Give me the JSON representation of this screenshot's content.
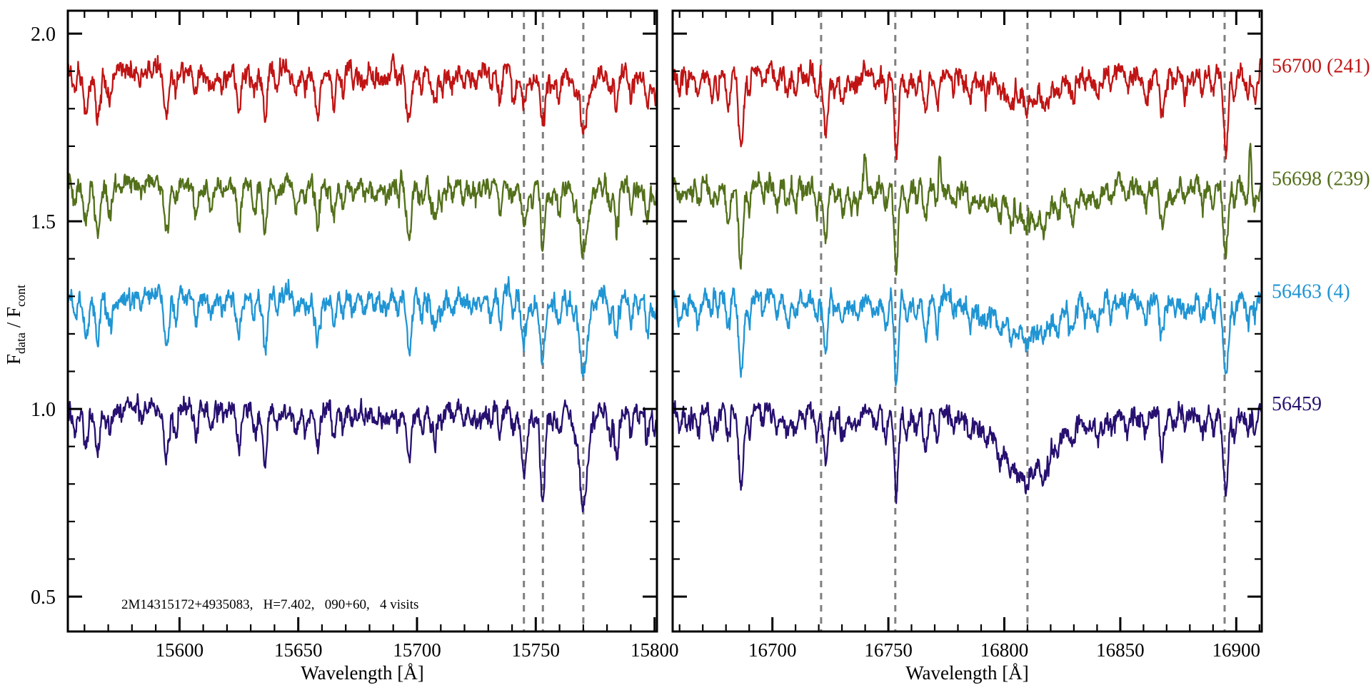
{
  "figure": {
    "background": "#ffffff",
    "annotation": "2M14315172+4935083,   H=7.402,   090+60,   4 visits",
    "ylabel": {
      "f1": "F",
      "sub1": "data",
      "mid": " / F",
      "sub2": "cont"
    }
  },
  "chart_data": {
    "type": "line",
    "title": "",
    "xlabel": "Wavelength [Å]",
    "ylabel": "F_data / F_cont",
    "ylim": [
      0.407,
      2.061
    ],
    "yticks_major": [
      0.5,
      1.0,
      1.5,
      2.0
    ],
    "ytick_labels": [
      "0.5",
      "1.0",
      "1.5",
      "2.0"
    ],
    "ytick_minor_step": 0.1,
    "grid": false,
    "legend_position": "right-outside",
    "marker_color": "#7f7f7f",
    "axis_color": "#000000",
    "panels": [
      {
        "xlim": [
          15553,
          15801
        ],
        "xticks_major": [
          15600,
          15650,
          15700,
          15750,
          15800
        ],
        "xtick_labels": [
          "15600",
          "15650",
          "15700",
          "15750",
          "15800"
        ],
        "xtick_minor_step": 10,
        "xlabel": "Wavelength [Å]",
        "dashed_markers": [
          15745,
          15753,
          15770
        ],
        "stellar_lines": [
          [
            15556,
            0.05,
            0.7
          ],
          [
            15560.5,
            0.1,
            0.8
          ],
          [
            15565.5,
            0.12,
            0.9
          ],
          [
            15571,
            0.04,
            0.7
          ],
          [
            15594.5,
            0.13,
            1.0
          ],
          [
            15598.5,
            0.06,
            0.7
          ],
          [
            15607,
            0.07,
            0.8
          ],
          [
            15613,
            0.04,
            0.7
          ],
          [
            15618,
            0.03,
            0.7
          ],
          [
            15625,
            0.11,
            0.9
          ],
          [
            15631.5,
            0.06,
            0.8
          ],
          [
            15636,
            0.11,
            0.9
          ],
          [
            15641,
            0.04,
            0.7
          ],
          [
            15649,
            0.05,
            0.7
          ],
          [
            15653,
            0.04,
            0.7
          ],
          [
            15658,
            0.09,
            0.9
          ],
          [
            15665,
            0.06,
            0.8
          ],
          [
            15669,
            0.04,
            0.7
          ],
          [
            15673,
            0.04,
            0.7
          ],
          [
            15682,
            0.05,
            0.8
          ],
          [
            15687,
            0.03,
            0.7
          ],
          [
            15692,
            0.04,
            0.7
          ],
          [
            15696.5,
            0.13,
            1.0
          ],
          [
            15702,
            0.05,
            0.7
          ],
          [
            15707.5,
            0.06,
            0.8
          ],
          [
            15715,
            0.03,
            0.7
          ],
          [
            15720,
            0.03,
            0.7
          ],
          [
            15725,
            0.04,
            0.7
          ],
          [
            15731,
            0.03,
            0.7
          ],
          [
            15735,
            0.06,
            0.8
          ],
          [
            15740.5,
            0.05,
            0.7
          ],
          [
            15748.5,
            0.04,
            0.7
          ],
          [
            15757,
            0.04,
            0.7
          ],
          [
            15760,
            0.06,
            0.8
          ],
          [
            15766,
            0.04,
            0.7
          ],
          [
            15775,
            0.04,
            0.7
          ],
          [
            15781,
            0.05,
            0.7
          ],
          [
            15784,
            0.11,
            0.9
          ],
          [
            15790,
            0.05,
            0.7
          ],
          [
            15797,
            0.08,
            0.8
          ],
          [
            15800,
            0.05,
            0.7
          ]
        ]
      },
      {
        "xlim": [
          16657,
          16911
        ],
        "xticks_major": [
          16700,
          16750,
          16800,
          16850,
          16900
        ],
        "xtick_labels": [
          "16700",
          "16750",
          "16800",
          "16850",
          "16900"
        ],
        "xtick_minor_step": 10,
        "xlabel": "Wavelength [Å]",
        "dashed_markers": [
          16721,
          16753,
          16810,
          16895
        ],
        "stellar_lines": [
          [
            16660,
            0.06,
            0.8
          ],
          [
            16663,
            0.04,
            0.7
          ],
          [
            16668,
            0.05,
            0.8
          ],
          [
            16674,
            0.06,
            0.8
          ],
          [
            16681,
            0.09,
            0.9
          ],
          [
            16686.5,
            0.2,
            1.0
          ],
          [
            16690,
            0.06,
            0.7
          ],
          [
            16696,
            0.04,
            0.7
          ],
          [
            16702,
            0.05,
            0.8
          ],
          [
            16707,
            0.03,
            0.7
          ],
          [
            16710,
            0.04,
            0.7
          ],
          [
            16714,
            0.03,
            0.7
          ],
          [
            16719,
            0.07,
            0.8
          ],
          [
            16723,
            0.14,
            0.9
          ],
          [
            16727,
            0.04,
            0.7
          ],
          [
            16731,
            0.04,
            0.7
          ],
          [
            16736,
            0.03,
            0.7
          ],
          [
            16744,
            0.04,
            0.7
          ],
          [
            16749,
            0.05,
            0.7
          ],
          [
            16753.5,
            0.21,
            0.9
          ],
          [
            16758,
            0.05,
            0.7
          ],
          [
            16762,
            0.04,
            0.7
          ],
          [
            16766,
            0.1,
            0.9
          ],
          [
            16771,
            0.08,
            0.8
          ],
          [
            16778,
            0.04,
            0.7
          ],
          [
            16785,
            0.05,
            0.8
          ],
          [
            16792,
            0.04,
            0.7
          ],
          [
            16798,
            0.05,
            0.8
          ],
          [
            16803,
            0.04,
            0.7
          ],
          [
            16817,
            0.04,
            0.7
          ],
          [
            16823,
            0.05,
            0.8
          ],
          [
            16830,
            0.04,
            0.7
          ],
          [
            16835,
            0.03,
            0.7
          ],
          [
            16840,
            0.06,
            0.8
          ],
          [
            16846,
            0.04,
            0.7
          ],
          [
            16853,
            0.05,
            0.7
          ],
          [
            16861,
            0.04,
            0.7
          ],
          [
            16868,
            0.1,
            0.9
          ],
          [
            16873,
            0.04,
            0.7
          ],
          [
            16878,
            0.05,
            0.7
          ],
          [
            16885,
            0.04,
            0.7
          ],
          [
            16890,
            0.06,
            0.8
          ],
          [
            16895.5,
            0.21,
            1.0
          ],
          [
            16899,
            0.05,
            0.7
          ],
          [
            16905,
            0.05,
            0.7
          ],
          [
            16908,
            0.06,
            0.8
          ]
        ]
      }
    ],
    "series": [
      {
        "label": "56700 (241)",
        "color": "#c01414",
        "offset": 1.9,
        "seed": 11,
        "visit_lines": [
          [
            [
              15741,
              0.06,
              0.8
            ],
            [
              15745,
              0.09,
              1.1
            ],
            [
              15753,
              0.13,
              1.0
            ],
            [
              15770,
              0.16,
              1.7
            ]
          ],
          [
            [
              16810.5,
              0.07,
              11
            ]
          ]
        ],
        "emission_lines": [
          [],
          []
        ]
      },
      {
        "label": "56698 (239)",
        "color": "#53701a",
        "offset": 1.6,
        "seed": 22,
        "visit_lines": [
          [
            [
              15745,
              0.1,
              1.1
            ],
            [
              15753,
              0.14,
              1.0
            ],
            [
              15770,
              0.2,
              1.7
            ]
          ],
          [
            [
              16810.5,
              0.1,
              11
            ]
          ]
        ],
        "emission_lines": [
          [],
          [
            [
              16740,
              0.1,
              0.5
            ],
            [
              16772,
              0.11,
              0.5
            ],
            [
              16906,
              0.12,
              0.6
            ]
          ]
        ]
      },
      {
        "label": "56463 (4)",
        "color": "#1f95d4",
        "offset": 1.3,
        "seed": 33,
        "visit_lines": [
          [
            [
              15745,
              0.12,
              1.1
            ],
            [
              15753,
              0.15,
              1.0
            ],
            [
              15770,
              0.2,
              1.7
            ]
          ],
          [
            [
              16810.5,
              0.11,
              11
            ]
          ]
        ],
        "emission_lines": [
          [],
          []
        ]
      },
      {
        "label": "56459",
        "color": "#271070",
        "offset": 1.0,
        "seed": 44,
        "visit_lines": [
          [
            [
              15745,
              0.17,
              1.1
            ],
            [
              15753,
              0.24,
              1.0
            ],
            [
              15770,
              0.27,
              1.8
            ]
          ],
          [
            [
              16810.5,
              0.19,
              11
            ]
          ]
        ],
        "emission_lines": [
          [],
          []
        ]
      }
    ]
  }
}
